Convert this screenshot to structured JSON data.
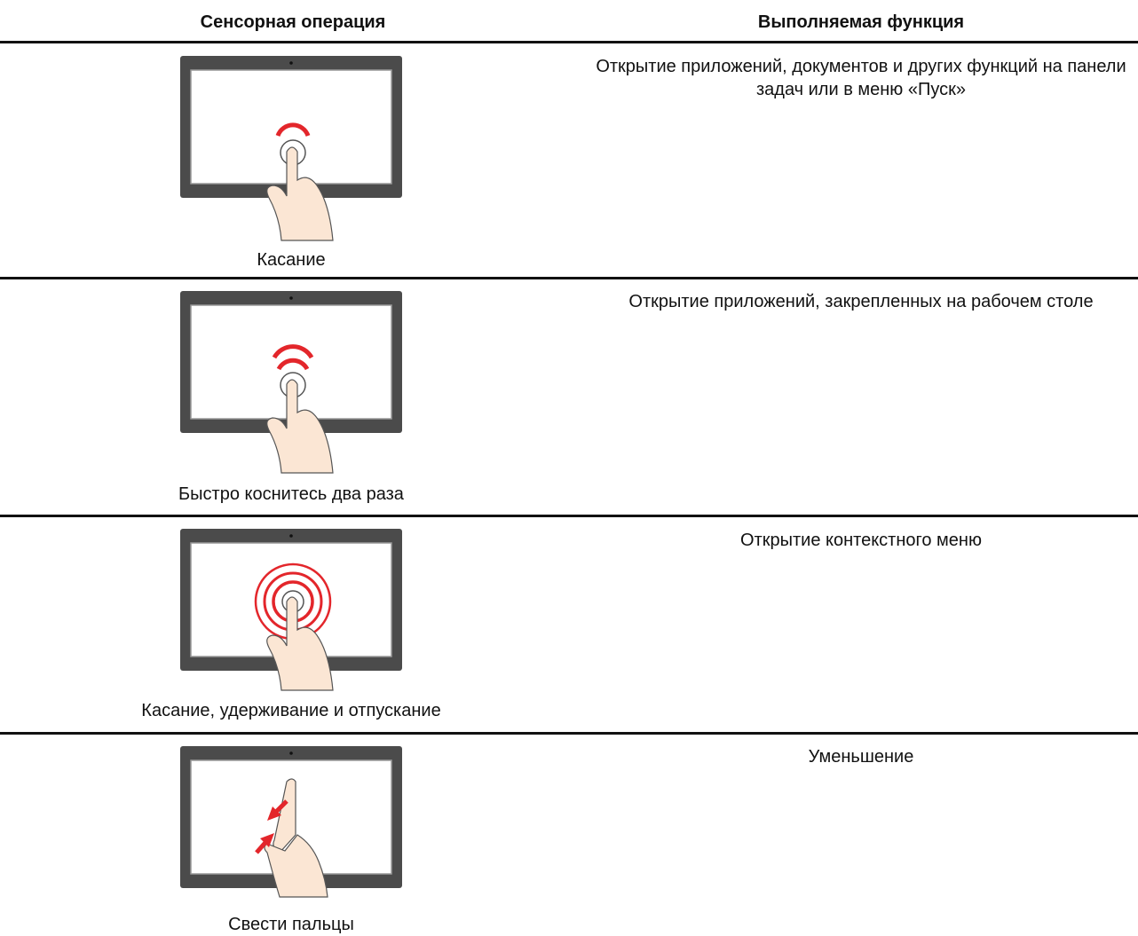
{
  "header": {
    "gesture": "Сенсорная операция",
    "function": "Выполняемая функция"
  },
  "rows": [
    {
      "gesture": "Касание",
      "function": "Открытие приложений, документов и других функций на панели задач или в меню «Пуск»"
    },
    {
      "gesture": "Быстро коснитесь два раза",
      "function": "Открытие приложений, закрепленных на рабочем столе"
    },
    {
      "gesture": "Касание, удерживание и отпускание",
      "function": "Открытие контекстного меню"
    },
    {
      "gesture": "Свести пальцы",
      "function": "Уменьшение"
    }
  ]
}
